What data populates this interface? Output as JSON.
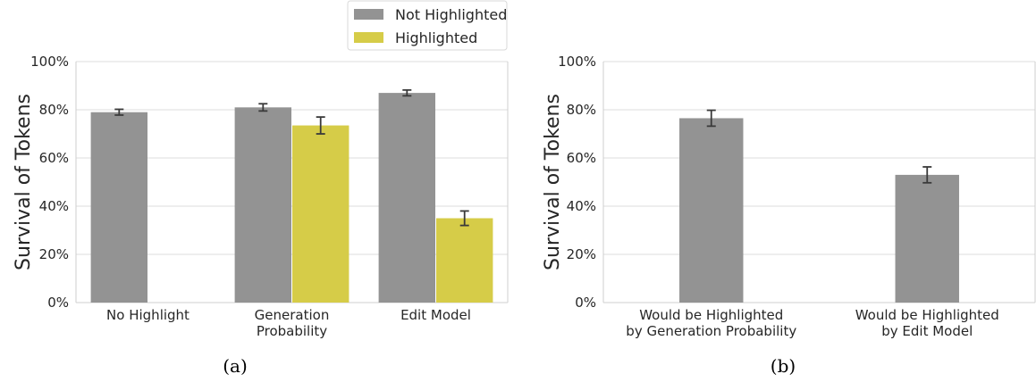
{
  "chart_data": [
    {
      "type": "bar",
      "panel_label": "(a)",
      "categories": [
        [
          "No Highlight"
        ],
        [
          "Generation",
          "Probability"
        ],
        [
          "Edit Model"
        ]
      ],
      "series": [
        {
          "name": "Not Highlighted",
          "color": "#939393",
          "values": [
            79,
            81,
            87
          ],
          "errors": [
            1.2,
            1.5,
            1.2
          ]
        },
        {
          "name": "Highlighted",
          "color": "#d6cc48",
          "values": [
            null,
            73.5,
            35
          ],
          "errors": [
            null,
            3.5,
            3
          ]
        }
      ],
      "ylabel": "Survival of Tokens",
      "ylim": [
        0,
        100
      ],
      "yticks": [
        "0%",
        "20%",
        "40%",
        "60%",
        "80%",
        "100%"
      ],
      "grid": true,
      "legend_position": "top-center"
    },
    {
      "type": "bar",
      "panel_label": "(b)",
      "categories": [
        [
          "Would be Highlighted",
          "by Generation Probability"
        ],
        [
          "Would be Highlighted",
          "by Edit Model"
        ]
      ],
      "series": [
        {
          "color": "#939393",
          "values": [
            76.5,
            53
          ],
          "errors": [
            3.3,
            3.3
          ]
        }
      ],
      "ylabel": "Survival of Tokens",
      "ylim": [
        0,
        100
      ],
      "yticks": [
        "0%",
        "20%",
        "40%",
        "60%",
        "80%",
        "100%"
      ],
      "grid": true
    }
  ]
}
